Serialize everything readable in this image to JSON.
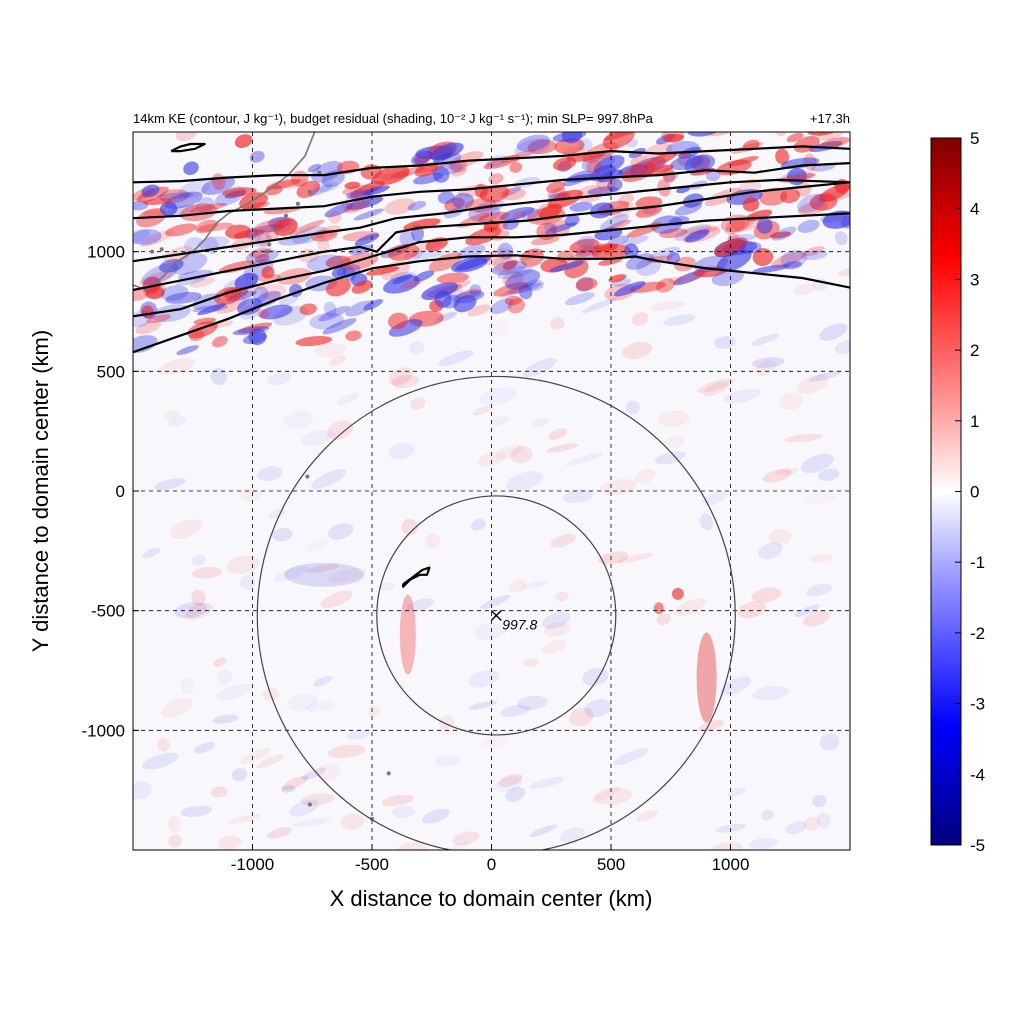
{
  "chart_data": {
    "type": "heatmap",
    "title_left": "14km KE (contour, J kg⁻¹), budget residual (shading, 10⁻² J kg⁻¹ s⁻¹); min SLP= 997.8hPa",
    "title_right": "+17.3h",
    "xlabel": "X distance to domain center (km)",
    "ylabel": "Y distance to domain center (km)",
    "xlim": [
      -1500,
      1500
    ],
    "ylim": [
      -1500,
      1500
    ],
    "x_ticks": [
      -1000,
      -500,
      0,
      500,
      1000
    ],
    "y_ticks": [
      -1000,
      -500,
      0,
      500,
      1000
    ],
    "x_tick_labels": [
      "-1000",
      "-500",
      "0",
      "500",
      "1000"
    ],
    "y_tick_labels": [
      "-1000",
      "-500",
      "0",
      "500",
      "1000"
    ],
    "grid": true,
    "grid_style": "dashed",
    "colorbar": {
      "min": -5,
      "max": 5,
      "ticks": [
        5,
        4,
        3,
        2,
        1,
        0,
        -1,
        -2,
        -3,
        -4,
        -5
      ],
      "tick_labels": [
        "5",
        "4",
        "3",
        "2",
        "1",
        "0",
        "-1",
        "-2",
        "-3",
        "-4",
        "-5"
      ],
      "colormap": [
        "#00007f",
        "#0000ff",
        "#8080ff",
        "#ffffff",
        "#ff8080",
        "#ff0000",
        "#7f0000"
      ]
    },
    "storm_center": {
      "x": 20,
      "y": -520,
      "label": "997.8"
    },
    "range_rings_km": [
      500,
      1000
    ],
    "ke_contours": [
      {
        "points": [
          [
            -1500,
            580
          ],
          [
            -1300,
            650
          ],
          [
            -1100,
            720
          ],
          [
            -900,
            800
          ],
          [
            -700,
            870
          ],
          [
            -500,
            930
          ],
          [
            -300,
            960
          ],
          [
            -100,
            980
          ],
          [
            100,
            985
          ],
          [
            300,
            970
          ],
          [
            500,
            970
          ],
          [
            600,
            980
          ],
          [
            700,
            960
          ],
          [
            900,
            930
          ],
          [
            1100,
            910
          ],
          [
            1300,
            890
          ],
          [
            1500,
            850
          ]
        ]
      },
      {
        "points": [
          [
            -1500,
            730
          ],
          [
            -1300,
            760
          ],
          [
            -1100,
            830
          ],
          [
            -900,
            880
          ],
          [
            -700,
            920
          ],
          [
            -500,
            980
          ],
          [
            -300,
            1040
          ],
          [
            -100,
            1060
          ],
          [
            100,
            1060
          ],
          [
            300,
            1070
          ],
          [
            500,
            1090
          ],
          [
            700,
            1110
          ],
          [
            900,
            1130
          ],
          [
            1100,
            1140
          ],
          [
            1300,
            1150
          ],
          [
            1500,
            1160
          ]
        ]
      },
      {
        "points": [
          [
            -1500,
            840
          ],
          [
            -1300,
            880
          ],
          [
            -1100,
            920
          ],
          [
            -900,
            960
          ],
          [
            -700,
            1000
          ],
          [
            -550,
            1020
          ],
          [
            -480,
            1000
          ],
          [
            -400,
            1080
          ],
          [
            -300,
            1100
          ],
          [
            -150,
            1110
          ],
          [
            0,
            1120
          ],
          [
            150,
            1130
          ],
          [
            300,
            1150
          ],
          [
            500,
            1170
          ],
          [
            700,
            1190
          ],
          [
            900,
            1220
          ],
          [
            1100,
            1250
          ],
          [
            1300,
            1270
          ],
          [
            1500,
            1290
          ]
        ]
      },
      {
        "points": [
          [
            -1500,
            960
          ],
          [
            -1300,
            990
          ],
          [
            -1100,
            1020
          ],
          [
            -900,
            1050
          ],
          [
            -700,
            1080
          ],
          [
            -550,
            1100
          ],
          [
            -400,
            1140
          ],
          [
            -200,
            1160
          ],
          [
            0,
            1190
          ],
          [
            200,
            1210
          ],
          [
            400,
            1230
          ],
          [
            600,
            1250
          ],
          [
            800,
            1270
          ],
          [
            1000,
            1290
          ],
          [
            1200,
            1300
          ],
          [
            1500,
            1290
          ]
        ]
      },
      {
        "points": [
          [
            -1500,
            1140
          ],
          [
            -1300,
            1150
          ],
          [
            -1100,
            1170
          ],
          [
            -900,
            1180
          ],
          [
            -700,
            1190
          ],
          [
            -500,
            1230
          ],
          [
            -300,
            1250
          ],
          [
            -100,
            1260
          ],
          [
            100,
            1280
          ],
          [
            300,
            1300
          ],
          [
            500,
            1310
          ],
          [
            700,
            1320
          ],
          [
            900,
            1340
          ],
          [
            1100,
            1330
          ],
          [
            1300,
            1360
          ],
          [
            1500,
            1370
          ]
        ]
      },
      {
        "points": [
          [
            -1500,
            1290
          ],
          [
            -1300,
            1295
          ],
          [
            -1100,
            1310
          ],
          [
            -900,
            1320
          ],
          [
            -700,
            1320
          ],
          [
            -500,
            1350
          ],
          [
            -300,
            1360
          ],
          [
            -100,
            1380
          ],
          [
            100,
            1390
          ],
          [
            300,
            1400
          ],
          [
            500,
            1420
          ],
          [
            700,
            1410
          ],
          [
            900,
            1420
          ],
          [
            1100,
            1430
          ],
          [
            1300,
            1440
          ],
          [
            1500,
            1430
          ]
        ]
      },
      {
        "points": [
          [
            -1340,
            1420
          ],
          [
            -1300,
            1440
          ],
          [
            -1260,
            1450
          ],
          [
            -1200,
            1450
          ],
          [
            -1240,
            1430
          ],
          [
            -1300,
            1420
          ],
          [
            -1340,
            1420
          ]
        ]
      },
      {
        "points": [
          [
            -370,
            -390
          ],
          [
            -330,
            -360
          ],
          [
            -290,
            -330
          ],
          [
            -260,
            -320
          ],
          [
            -270,
            -350
          ],
          [
            -300,
            -350
          ],
          [
            -340,
            -370
          ],
          [
            -370,
            -400
          ],
          [
            -370,
            -390
          ]
        ]
      }
    ]
  }
}
